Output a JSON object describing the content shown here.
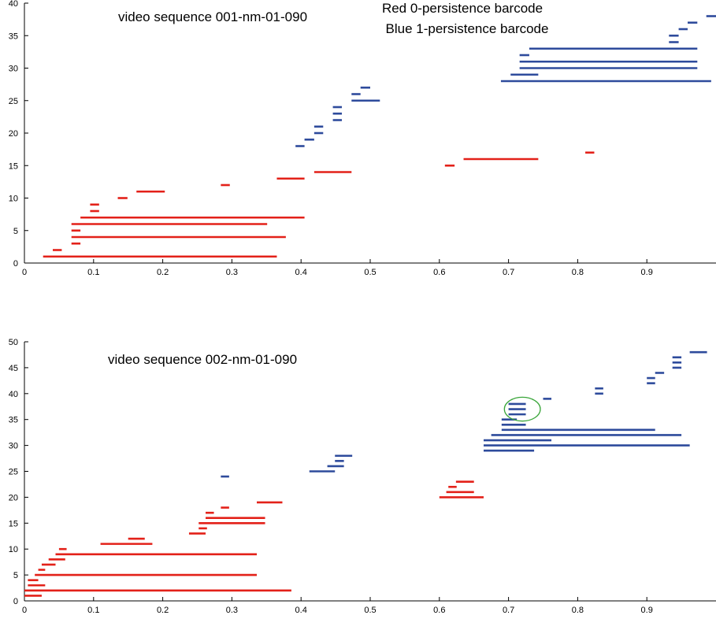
{
  "colors": {
    "h0": "#e32119",
    "h1": "#2e4b9c",
    "highlight": "#3aa63a"
  },
  "legend": {
    "line1": "Red  0-persistence barcode",
    "line2": "Blue 1-persistence barcode"
  },
  "chart_data": [
    {
      "type": "barcode",
      "title": "video sequence 001-nm-01-090",
      "xlim": [
        0,
        1
      ],
      "ylim": [
        0,
        40
      ],
      "xticks": [
        0,
        0.1,
        0.2,
        0.3,
        0.4,
        0.5,
        0.6,
        0.7,
        0.8,
        0.9
      ],
      "xtick_labels": [
        "0",
        "0.1",
        "0.2",
        "0.3",
        "0.4",
        "0.5",
        "0.6",
        "0.7",
        "0.8",
        "0.9"
      ],
      "yticks": [
        0,
        5,
        10,
        15,
        20,
        25,
        30,
        35,
        40
      ],
      "ytick_labels": [
        "0",
        "5",
        "10",
        "15",
        "20",
        "25",
        "30",
        "35",
        "40"
      ],
      "series": [
        {
          "name": "0-persistence",
          "color_key": "h0",
          "bars": [
            {
              "y": 1,
              "start": 0.027,
              "end": 0.365
            },
            {
              "y": 2,
              "start": 0.041,
              "end": 0.054
            },
            {
              "y": 3,
              "start": 0.068,
              "end": 0.081
            },
            {
              "y": 4,
              "start": 0.068,
              "end": 0.378
            },
            {
              "y": 5,
              "start": 0.068,
              "end": 0.081
            },
            {
              "y": 6,
              "start": 0.068,
              "end": 0.351
            },
            {
              "y": 7,
              "start": 0.081,
              "end": 0.405
            },
            {
              "y": 8,
              "start": 0.095,
              "end": 0.108
            },
            {
              "y": 9,
              "start": 0.095,
              "end": 0.108
            },
            {
              "y": 10,
              "start": 0.135,
              "end": 0.149
            },
            {
              "y": 11,
              "start": 0.162,
              "end": 0.203
            },
            {
              "y": 12,
              "start": 0.284,
              "end": 0.297
            },
            {
              "y": 13,
              "start": 0.365,
              "end": 0.405
            },
            {
              "y": 14,
              "start": 0.419,
              "end": 0.473
            },
            {
              "y": 15,
              "start": 0.608,
              "end": 0.622
            },
            {
              "y": 16,
              "start": 0.635,
              "end": 0.743
            },
            {
              "y": 17,
              "start": 0.811,
              "end": 0.824
            }
          ]
        },
        {
          "name": "1-persistence",
          "color_key": "h1",
          "bars": [
            {
              "y": 18,
              "start": 0.392,
              "end": 0.405
            },
            {
              "y": 19,
              "start": 0.405,
              "end": 0.419
            },
            {
              "y": 20,
              "start": 0.419,
              "end": 0.432
            },
            {
              "y": 21,
              "start": 0.419,
              "end": 0.432
            },
            {
              "y": 22,
              "start": 0.446,
              "end": 0.459
            },
            {
              "y": 23,
              "start": 0.446,
              "end": 0.459
            },
            {
              "y": 24,
              "start": 0.446,
              "end": 0.459
            },
            {
              "y": 25,
              "start": 0.473,
              "end": 0.514
            },
            {
              "y": 26,
              "start": 0.473,
              "end": 0.486
            },
            {
              "y": 27,
              "start": 0.486,
              "end": 0.5
            },
            {
              "y": 28,
              "start": 0.689,
              "end": 0.993
            },
            {
              "y": 29,
              "start": 0.703,
              "end": 0.743
            },
            {
              "y": 30,
              "start": 0.716,
              "end": 0.973
            },
            {
              "y": 31,
              "start": 0.716,
              "end": 0.973
            },
            {
              "y": 32,
              "start": 0.716,
              "end": 0.73
            },
            {
              "y": 33,
              "start": 0.73,
              "end": 0.973
            },
            {
              "y": 34,
              "start": 0.932,
              "end": 0.946
            },
            {
              "y": 35,
              "start": 0.932,
              "end": 0.946
            },
            {
              "y": 36,
              "start": 0.946,
              "end": 0.959
            },
            {
              "y": 37,
              "start": 0.959,
              "end": 0.973
            },
            {
              "y": 38,
              "start": 0.986,
              "end": 1.0
            }
          ]
        }
      ]
    },
    {
      "type": "barcode",
      "title": "video sequence 002-nm-01-090",
      "xlim": [
        0,
        1
      ],
      "ylim": [
        0,
        50
      ],
      "xticks": [
        0,
        0.1,
        0.2,
        0.3,
        0.4,
        0.5,
        0.6,
        0.7,
        0.8,
        0.9
      ],
      "xtick_labels": [
        "0",
        "0.1",
        "0.2",
        "0.3",
        "0.4",
        "0.5",
        "0.6",
        "0.7",
        "0.8",
        "0.9"
      ],
      "yticks": [
        0,
        5,
        10,
        15,
        20,
        25,
        30,
        35,
        40,
        45,
        50
      ],
      "ytick_labels": [
        "0",
        "5",
        "10",
        "15",
        "20",
        "25",
        "30",
        "35",
        "40",
        "45",
        "50"
      ],
      "highlight_ellipse": {
        "cx": 0.72,
        "cy": 37,
        "rx": 0.026,
        "ry": 2.3
      },
      "series": [
        {
          "name": "0-persistence",
          "color_key": "h0",
          "bars": [
            {
              "y": 1,
              "start": 0.0,
              "end": 0.025
            },
            {
              "y": 2,
              "start": 0.0,
              "end": 0.386
            },
            {
              "y": 3,
              "start": 0.005,
              "end": 0.03
            },
            {
              "y": 4,
              "start": 0.005,
              "end": 0.02
            },
            {
              "y": 5,
              "start": 0.015,
              "end": 0.336
            },
            {
              "y": 6,
              "start": 0.02,
              "end": 0.03
            },
            {
              "y": 7,
              "start": 0.025,
              "end": 0.045
            },
            {
              "y": 8,
              "start": 0.035,
              "end": 0.059
            },
            {
              "y": 9,
              "start": 0.045,
              "end": 0.336
            },
            {
              "y": 10,
              "start": 0.05,
              "end": 0.061
            },
            {
              "y": 11,
              "start": 0.11,
              "end": 0.185
            },
            {
              "y": 12,
              "start": 0.15,
              "end": 0.174
            },
            {
              "y": 13,
              "start": 0.238,
              "end": 0.262
            },
            {
              "y": 14,
              "start": 0.252,
              "end": 0.264
            },
            {
              "y": 15,
              "start": 0.252,
              "end": 0.348
            },
            {
              "y": 16,
              "start": 0.262,
              "end": 0.348
            },
            {
              "y": 17,
              "start": 0.262,
              "end": 0.274
            },
            {
              "y": 18,
              "start": 0.284,
              "end": 0.296
            },
            {
              "y": 19,
              "start": 0.336,
              "end": 0.373
            },
            {
              "y": 20,
              "start": 0.6,
              "end": 0.664
            },
            {
              "y": 21,
              "start": 0.61,
              "end": 0.65
            },
            {
              "y": 22,
              "start": 0.613,
              "end": 0.625
            },
            {
              "y": 23,
              "start": 0.624,
              "end": 0.65
            }
          ]
        },
        {
          "name": "1-persistence",
          "color_key": "h1",
          "bars": [
            {
              "y": 24,
              "start": 0.284,
              "end": 0.296
            },
            {
              "y": 25,
              "start": 0.412,
              "end": 0.449
            },
            {
              "y": 26,
              "start": 0.438,
              "end": 0.462
            },
            {
              "y": 27,
              "start": 0.449,
              "end": 0.462
            },
            {
              "y": 28,
              "start": 0.449,
              "end": 0.474
            },
            {
              "y": 29,
              "start": 0.664,
              "end": 0.737
            },
            {
              "y": 30,
              "start": 0.664,
              "end": 0.962
            },
            {
              "y": 31,
              "start": 0.664,
              "end": 0.762
            },
            {
              "y": 32,
              "start": 0.675,
              "end": 0.95
            },
            {
              "y": 33,
              "start": 0.69,
              "end": 0.912
            },
            {
              "y": 34,
              "start": 0.69,
              "end": 0.725
            },
            {
              "y": 35,
              "start": 0.69,
              "end": 0.712
            },
            {
              "y": 36,
              "start": 0.7,
              "end": 0.725
            },
            {
              "y": 37,
              "start": 0.7,
              "end": 0.725
            },
            {
              "y": 38,
              "start": 0.7,
              "end": 0.725
            },
            {
              "y": 39,
              "start": 0.75,
              "end": 0.762
            },
            {
              "y": 40,
              "start": 0.825,
              "end": 0.837
            },
            {
              "y": 41,
              "start": 0.825,
              "end": 0.837
            },
            {
              "y": 42,
              "start": 0.9,
              "end": 0.912
            },
            {
              "y": 43,
              "start": 0.9,
              "end": 0.912
            },
            {
              "y": 44,
              "start": 0.912,
              "end": 0.925
            },
            {
              "y": 45,
              "start": 0.937,
              "end": 0.95
            },
            {
              "y": 46,
              "start": 0.937,
              "end": 0.95
            },
            {
              "y": 47,
              "start": 0.937,
              "end": 0.95
            },
            {
              "y": 48,
              "start": 0.962,
              "end": 0.987
            }
          ]
        }
      ]
    }
  ]
}
